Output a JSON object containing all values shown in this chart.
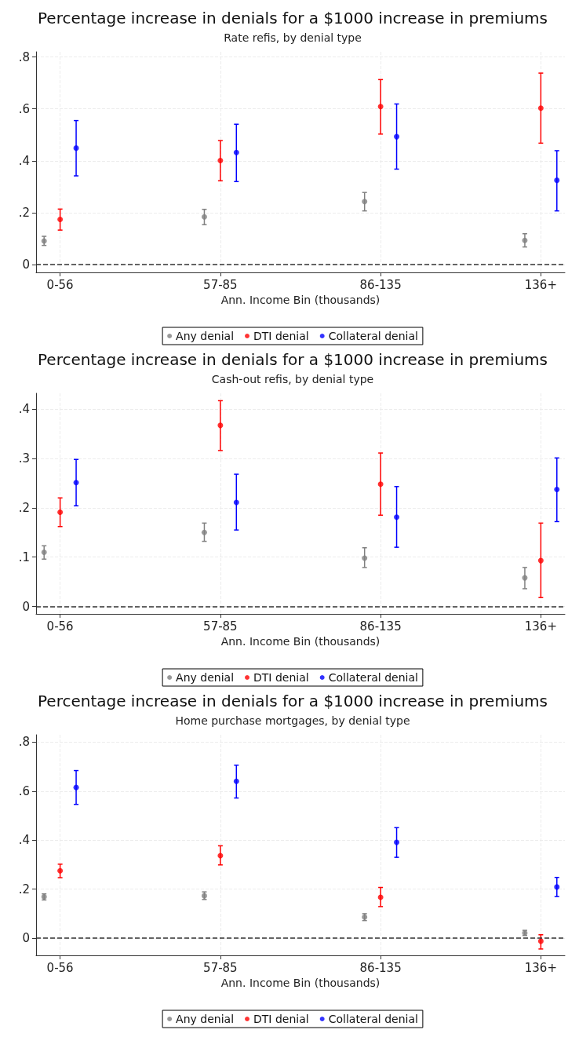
{
  "chart_data": [
    {
      "type": "scatter",
      "title": "Percentage increase in denials for a $1000 increase in premiums",
      "subtitle": "Rate refis, by denial type",
      "xlabel": "Ann. Income Bin (thousands)",
      "categories": [
        "0-56",
        "57-85",
        "86-135",
        "136+"
      ],
      "ylim": [
        -0.03,
        0.82
      ],
      "yticks": [
        {
          "value": 0,
          "label": "0"
        },
        {
          "value": 0.2,
          "label": ".2"
        },
        {
          "value": 0.4,
          "label": ".4"
        },
        {
          "value": 0.6,
          "label": ".6"
        },
        {
          "value": 0.8,
          "label": ".8"
        }
      ],
      "series": [
        {
          "name": "Any denial",
          "color": "#808080",
          "values": [
            0.091,
            0.184,
            0.243,
            0.093
          ],
          "errors": [
            [
              0.074,
              0.109
            ],
            [
              0.154,
              0.213
            ],
            [
              0.207,
              0.278
            ],
            [
              0.068,
              0.119
            ]
          ]
        },
        {
          "name": "DTI denial",
          "color": "#ff0000",
          "values": [
            0.174,
            0.401,
            0.609,
            0.603
          ],
          "errors": [
            [
              0.133,
              0.214
            ],
            [
              0.323,
              0.478
            ],
            [
              0.503,
              0.713
            ],
            [
              0.468,
              0.738
            ]
          ]
        },
        {
          "name": "Collateral denial",
          "color": "#0000ff",
          "values": [
            0.449,
            0.432,
            0.493,
            0.325
          ],
          "errors": [
            [
              0.342,
              0.555
            ],
            [
              0.32,
              0.541
            ],
            [
              0.368,
              0.619
            ],
            [
              0.207,
              0.439
            ]
          ]
        }
      ],
      "ref_lines": [
        {
          "axis": "y",
          "value": 0,
          "color": "#333333",
          "line_style": "dashed"
        }
      ],
      "grid": true,
      "legend": "bottom",
      "marker": "circle"
    },
    {
      "type": "scatter",
      "title": "Percentage increase in denials for a $1000 increase in premiums",
      "subtitle": "Cash-out refis, by denial type",
      "xlabel": "Ann. Income Bin (thousands)",
      "categories": [
        "0-56",
        "57-85",
        "86-135",
        "136+"
      ],
      "ylim": [
        -0.015,
        0.432
      ],
      "yticks": [
        {
          "value": 0,
          "label": "0"
        },
        {
          "value": 0.1,
          "label": ".1"
        },
        {
          "value": 0.2,
          "label": ".2"
        },
        {
          "value": 0.3,
          "label": ".3"
        },
        {
          "value": 0.4,
          "label": ".4"
        }
      ],
      "series": [
        {
          "name": "Any denial",
          "color": "#808080",
          "values": [
            0.11,
            0.15,
            0.098,
            0.058
          ],
          "errors": [
            [
              0.096,
              0.123
            ],
            [
              0.132,
              0.169
            ],
            [
              0.079,
              0.119
            ],
            [
              0.036,
              0.079
            ]
          ]
        },
        {
          "name": "DTI denial",
          "color": "#ff0000",
          "values": [
            0.191,
            0.367,
            0.248,
            0.093
          ],
          "errors": [
            [
              0.162,
              0.22
            ],
            [
              0.316,
              0.417
            ],
            [
              0.185,
              0.311
            ],
            [
              0.018,
              0.169
            ]
          ]
        },
        {
          "name": "Collateral denial",
          "color": "#0000ff",
          "values": [
            0.251,
            0.211,
            0.181,
            0.237
          ],
          "errors": [
            [
              0.204,
              0.298
            ],
            [
              0.155,
              0.268
            ],
            [
              0.12,
              0.243
            ],
            [
              0.172,
              0.301
            ]
          ]
        }
      ],
      "ref_lines": [
        {
          "axis": "y",
          "value": 0,
          "color": "#333333",
          "line_style": "dashed"
        }
      ],
      "grid": true,
      "legend": "bottom",
      "marker": "circle"
    },
    {
      "type": "scatter",
      "title": "Percentage increase in denials for a $1000 increase in premiums",
      "subtitle": "Home purchase mortgages, by denial type",
      "xlabel": "Ann. Income Bin (thousands)",
      "categories": [
        "0-56",
        "57-85",
        "86-135",
        "136+"
      ],
      "ylim": [
        -0.07,
        0.83
      ],
      "yticks": [
        {
          "value": 0,
          "label": "0"
        },
        {
          "value": 0.2,
          "label": ".2"
        },
        {
          "value": 0.4,
          "label": ".4"
        },
        {
          "value": 0.6,
          "label": ".6"
        },
        {
          "value": 0.8,
          "label": ".8"
        }
      ],
      "series": [
        {
          "name": "Any denial",
          "color": "#808080",
          "values": [
            0.169,
            0.173,
            0.086,
            0.021
          ],
          "errors": [
            [
              0.156,
              0.181
            ],
            [
              0.158,
              0.189
            ],
            [
              0.072,
              0.1
            ],
            [
              0.011,
              0.032
            ]
          ]
        },
        {
          "name": "DTI denial",
          "color": "#ff0000",
          "values": [
            0.275,
            0.337,
            0.167,
            -0.012
          ],
          "errors": [
            [
              0.247,
              0.302
            ],
            [
              0.299,
              0.377
            ],
            [
              0.129,
              0.207
            ],
            [
              -0.044,
              0.014
            ]
          ]
        },
        {
          "name": "Collateral denial",
          "color": "#0000ff",
          "values": [
            0.615,
            0.64,
            0.391,
            0.209
          ],
          "errors": [
            [
              0.546,
              0.684
            ],
            [
              0.572,
              0.706
            ],
            [
              0.33,
              0.451
            ],
            [
              0.17,
              0.248
            ]
          ]
        }
      ],
      "ref_lines": [
        {
          "axis": "y",
          "value": 0,
          "color": "#333333",
          "line_style": "dashed"
        }
      ],
      "grid": true,
      "legend": "bottom",
      "marker": "circle"
    }
  ]
}
